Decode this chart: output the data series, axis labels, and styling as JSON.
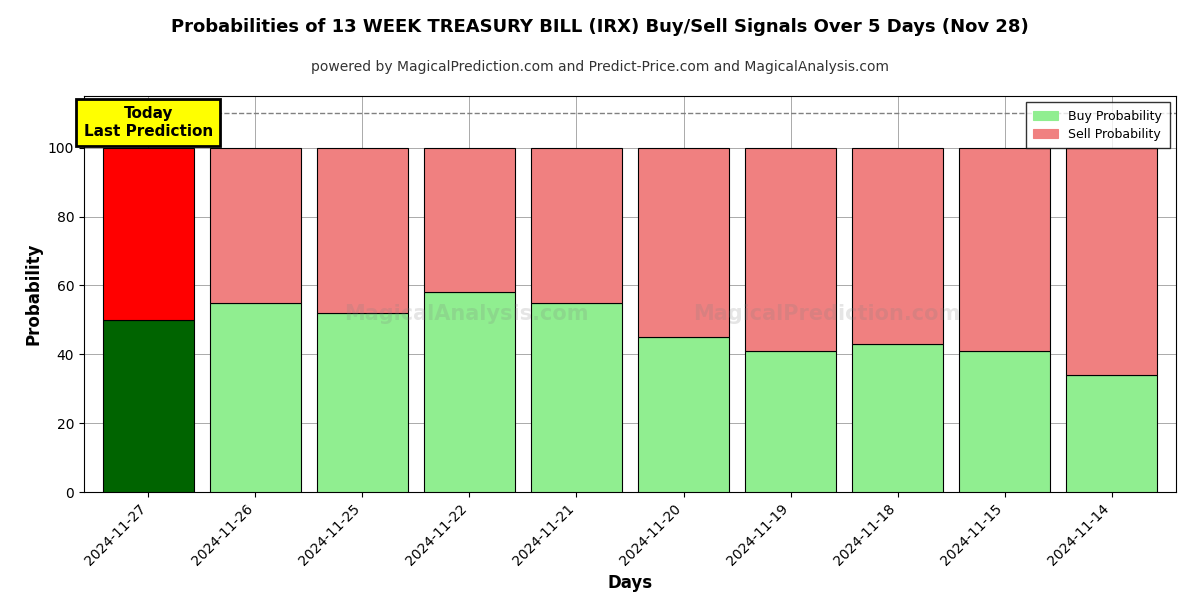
{
  "title": "Probabilities of 13 WEEK TREASURY BILL (IRX) Buy/Sell Signals Over 5 Days (Nov 28)",
  "subtitle": "powered by MagicalPrediction.com and Predict-Price.com and MagicalAnalysis.com",
  "xlabel": "Days",
  "ylabel": "Probability",
  "categories": [
    "2024-11-27",
    "2024-11-26",
    "2024-11-25",
    "2024-11-22",
    "2024-11-21",
    "2024-11-20",
    "2024-11-19",
    "2024-11-18",
    "2024-11-15",
    "2024-11-14"
  ],
  "buy_values": [
    50,
    55,
    52,
    58,
    55,
    45,
    41,
    43,
    41,
    34
  ],
  "sell_values": [
    50,
    45,
    48,
    42,
    45,
    55,
    59,
    57,
    59,
    66
  ],
  "buy_colors": [
    "#006400",
    "#90EE90",
    "#90EE90",
    "#90EE90",
    "#90EE90",
    "#90EE90",
    "#90EE90",
    "#90EE90",
    "#90EE90",
    "#90EE90"
  ],
  "sell_colors": [
    "#FF0000",
    "#F08080",
    "#F08080",
    "#F08080",
    "#F08080",
    "#F08080",
    "#F08080",
    "#F08080",
    "#F08080",
    "#F08080"
  ],
  "today_label": "Today\nLast Prediction",
  "legend_buy_color": "#90EE90",
  "legend_sell_color": "#F08080",
  "ylim": [
    0,
    115
  ],
  "dashed_line_y": 110,
  "background_color": "#ffffff",
  "grid_color": "#aaaaaa",
  "bar_edge_color": "#000000",
  "bar_width": 0.85
}
